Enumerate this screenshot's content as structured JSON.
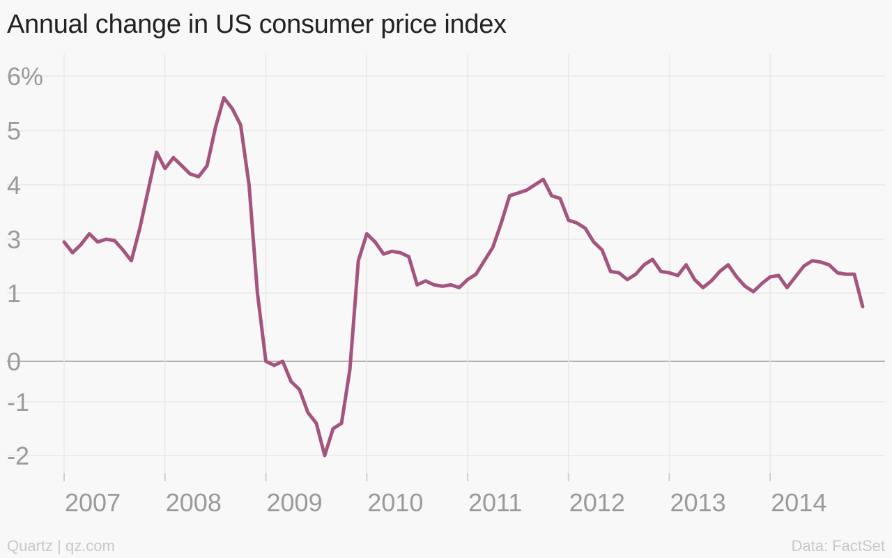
{
  "title": "Annual change in US consumer price index",
  "footer": {
    "credit": "Quartz | qz.com",
    "source": "Data: FactSet"
  },
  "colors": {
    "line": "#a4547e",
    "grid": "#e8e8e8",
    "zero": "#9a9a9a",
    "tick": "#9a9a9a"
  },
  "chart_data": {
    "type": "line",
    "title": "Annual change in US consumer price index",
    "xlabel": "",
    "ylabel": "",
    "grid": true,
    "y_ticks": [
      {
        "value": 6,
        "label": "6%"
      },
      {
        "value": 5,
        "label": "5"
      },
      {
        "value": 4,
        "label": "4"
      },
      {
        "value": 3,
        "label": "3"
      },
      {
        "value": 1,
        "label": "1"
      },
      {
        "value": 0,
        "label": "0"
      },
      {
        "value": -1,
        "label": "-1"
      },
      {
        "value": -2,
        "label": "-2"
      }
    ],
    "x_ticks": [
      "2007",
      "2008",
      "2009",
      "2010",
      "2011",
      "2012",
      "2013",
      "2014"
    ],
    "series": [
      {
        "values": [
          {
            "x": "2007-01",
            "y": 2.9
          },
          {
            "x": "2007-02",
            "y": 2.5
          },
          {
            "x": "2007-03",
            "y": 2.8
          },
          {
            "x": "2007-04",
            "y": 3.1
          },
          {
            "x": "2007-05",
            "y": 2.9
          },
          {
            "x": "2007-06",
            "y": 3.0
          },
          {
            "x": "2007-07",
            "y": 2.95
          },
          {
            "x": "2007-08",
            "y": 2.6
          },
          {
            "x": "2007-09",
            "y": 2.2
          },
          {
            "x": "2007-10",
            "y": 3.2
          },
          {
            "x": "2007-11",
            "y": 3.9
          },
          {
            "x": "2007-12",
            "y": 4.6
          },
          {
            "x": "2008-01",
            "y": 4.3
          },
          {
            "x": "2008-02",
            "y": 4.5
          },
          {
            "x": "2008-03",
            "y": 4.35
          },
          {
            "x": "2008-04",
            "y": 4.2
          },
          {
            "x": "2008-05",
            "y": 4.15
          },
          {
            "x": "2008-06",
            "y": 4.35
          },
          {
            "x": "2008-07",
            "y": 5.05
          },
          {
            "x": "2008-08",
            "y": 5.6
          },
          {
            "x": "2008-09",
            "y": 5.4
          },
          {
            "x": "2008-10",
            "y": 5.1
          },
          {
            "x": "2008-11",
            "y": 4.0
          },
          {
            "x": "2008-12",
            "y": 1.0
          },
          {
            "x": "2009-01",
            "y": 0.0
          },
          {
            "x": "2009-02",
            "y": -0.1
          },
          {
            "x": "2009-03",
            "y": 0.0
          },
          {
            "x": "2009-04",
            "y": -0.5
          },
          {
            "x": "2009-05",
            "y": -0.7
          },
          {
            "x": "2009-06",
            "y": -1.2
          },
          {
            "x": "2009-07",
            "y": -1.4
          },
          {
            "x": "2009-08",
            "y": -2.0
          },
          {
            "x": "2009-09",
            "y": -1.5
          },
          {
            "x": "2009-10",
            "y": -1.4
          },
          {
            "x": "2009-11",
            "y": -0.2
          },
          {
            "x": "2009-12",
            "y": 2.2
          },
          {
            "x": "2010-01",
            "y": 3.1
          },
          {
            "x": "2010-02",
            "y": 2.9
          },
          {
            "x": "2010-03",
            "y": 2.45
          },
          {
            "x": "2010-04",
            "y": 2.55
          },
          {
            "x": "2010-05",
            "y": 2.5
          },
          {
            "x": "2010-06",
            "y": 2.35
          },
          {
            "x": "2010-07",
            "y": 1.3
          },
          {
            "x": "2010-08",
            "y": 1.45
          },
          {
            "x": "2010-09",
            "y": 1.3
          },
          {
            "x": "2010-10",
            "y": 1.25
          },
          {
            "x": "2010-11",
            "y": 1.3
          },
          {
            "x": "2010-12",
            "y": 1.2
          },
          {
            "x": "2011-01",
            "y": 1.5
          },
          {
            "x": "2011-02",
            "y": 1.7
          },
          {
            "x": "2011-03",
            "y": 2.2
          },
          {
            "x": "2011-04",
            "y": 2.7
          },
          {
            "x": "2011-05",
            "y": 3.3
          },
          {
            "x": "2011-06",
            "y": 3.8
          },
          {
            "x": "2011-07",
            "y": 3.85
          },
          {
            "x": "2011-08",
            "y": 3.9
          },
          {
            "x": "2011-09",
            "y": 4.0
          },
          {
            "x": "2011-10",
            "y": 4.1
          },
          {
            "x": "2011-11",
            "y": 3.8
          },
          {
            "x": "2011-12",
            "y": 3.75
          },
          {
            "x": "2012-01",
            "y": 3.35
          },
          {
            "x": "2012-02",
            "y": 3.3
          },
          {
            "x": "2012-03",
            "y": 3.2
          },
          {
            "x": "2012-04",
            "y": 2.9
          },
          {
            "x": "2012-05",
            "y": 2.6
          },
          {
            "x": "2012-06",
            "y": 1.8
          },
          {
            "x": "2012-07",
            "y": 1.75
          },
          {
            "x": "2012-08",
            "y": 1.5
          },
          {
            "x": "2012-09",
            "y": 1.7
          },
          {
            "x": "2012-10",
            "y": 2.05
          },
          {
            "x": "2012-11",
            "y": 2.25
          },
          {
            "x": "2012-12",
            "y": 1.8
          },
          {
            "x": "2013-01",
            "y": 1.75
          },
          {
            "x": "2013-02",
            "y": 1.65
          },
          {
            "x": "2013-03",
            "y": 2.05
          },
          {
            "x": "2013-04",
            "y": 1.5
          },
          {
            "x": "2013-05",
            "y": 1.2
          },
          {
            "x": "2013-06",
            "y": 1.45
          },
          {
            "x": "2013-07",
            "y": 1.8
          },
          {
            "x": "2013-08",
            "y": 2.05
          },
          {
            "x": "2013-09",
            "y": 1.6
          },
          {
            "x": "2013-10",
            "y": 1.25
          },
          {
            "x": "2013-11",
            "y": 1.05
          },
          {
            "x": "2013-12",
            "y": 1.35
          },
          {
            "x": "2014-01",
            "y": 1.6
          },
          {
            "x": "2014-02",
            "y": 1.65
          },
          {
            "x": "2014-03",
            "y": 1.2
          },
          {
            "x": "2014-04",
            "y": 1.6
          },
          {
            "x": "2014-05",
            "y": 2.0
          },
          {
            "x": "2014-06",
            "y": 2.2
          },
          {
            "x": "2014-07",
            "y": 2.15
          },
          {
            "x": "2014-08",
            "y": 2.05
          },
          {
            "x": "2014-09",
            "y": 1.75
          },
          {
            "x": "2014-10",
            "y": 1.7
          },
          {
            "x": "2014-11",
            "y": 1.7
          },
          {
            "x": "2014-12",
            "y": 0.8
          }
        ]
      }
    ]
  }
}
